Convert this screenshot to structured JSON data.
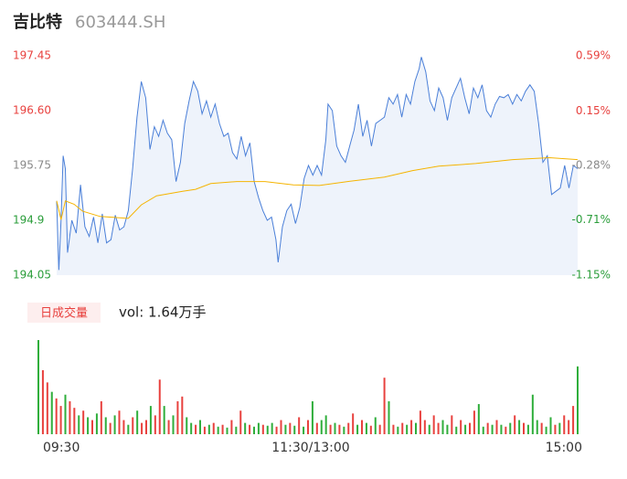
{
  "chart_data": [
    {
      "type": "line",
      "title": "吉比特",
      "subtitle": "603444.SH",
      "xlim": [
        0,
        240
      ],
      "xticks": [
        {
          "value": 0,
          "label": "09:30"
        },
        {
          "value": 120,
          "label": "11:30/13:00"
        },
        {
          "value": 240,
          "label": "15:00"
        }
      ],
      "ylim": [
        194.05,
        197.45
      ],
      "yticks": [
        194.05,
        194.9,
        {
          "value": 195.75,
          "label": "195.75"
        },
        {
          "value": 196.6,
          "label": "196.60"
        },
        197.45
      ],
      "ytick_colors": [
        "#2a9d3a",
        "#2a9d3a",
        "#888888",
        "#e8413e",
        "#e8413e"
      ],
      "y2lim": [
        -1.15,
        0.59
      ],
      "y2ticks": [
        {
          "value": -1.15,
          "label": "-1.15%"
        },
        {
          "value": -0.71,
          "label": "-0.71%"
        },
        {
          "value": -0.28,
          "label": "-0.28%"
        },
        {
          "value": 0.15,
          "label": "0.15%"
        },
        {
          "value": 0.59,
          "label": "0.59%"
        }
      ],
      "y2tick_colors": [
        "#2a9d3a",
        "#2a9d3a",
        "#888888",
        "#e8413e",
        "#e8413e"
      ],
      "series": [
        {
          "color": "#4a7fd8",
          "area": "#eef3fb",
          "x": [
            0,
            1,
            2,
            3,
            4,
            5,
            7,
            9,
            11,
            13,
            15,
            17,
            19,
            21,
            23,
            25,
            27,
            29,
            31,
            33,
            35,
            37,
            39,
            41,
            43,
            45,
            47,
            49,
            51,
            53,
            55,
            57,
            59,
            61,
            63,
            65,
            67,
            69,
            71,
            73,
            75,
            77,
            79,
            81,
            83,
            85,
            87,
            89,
            91,
            93,
            95,
            97,
            99,
            101,
            102,
            104,
            106,
            108,
            110,
            112,
            114,
            116,
            118,
            120,
            122,
            124,
            125,
            127,
            129,
            131,
            133,
            135,
            137,
            139,
            141,
            143,
            145,
            147,
            149,
            151,
            153,
            155,
            157,
            159,
            161,
            163,
            165,
            167,
            168,
            170,
            172,
            174,
            176,
            178,
            180,
            182,
            184,
            186,
            188,
            190,
            192,
            194,
            196,
            198,
            200,
            202,
            204,
            206,
            208,
            210,
            212,
            214,
            216,
            218,
            220,
            222,
            224,
            226,
            228,
            230,
            232,
            234,
            236,
            238,
            240
          ],
          "values": [
            195.2,
            194.13,
            194.91,
            195.9,
            195.7,
            194.4,
            194.9,
            194.7,
            195.45,
            194.8,
            194.65,
            194.95,
            194.55,
            195.0,
            194.55,
            194.6,
            194.98,
            194.75,
            194.8,
            195.05,
            195.7,
            196.5,
            197.05,
            196.8,
            196.0,
            196.35,
            196.2,
            196.45,
            196.25,
            196.15,
            195.5,
            195.8,
            196.4,
            196.75,
            197.05,
            196.9,
            196.55,
            196.75,
            196.5,
            196.7,
            196.4,
            196.2,
            196.25,
            195.95,
            195.85,
            196.2,
            195.9,
            196.1,
            195.5,
            195.25,
            195.05,
            194.9,
            194.95,
            194.6,
            194.25,
            194.8,
            195.05,
            195.15,
            194.85,
            195.1,
            195.55,
            195.75,
            195.6,
            195.75,
            195.6,
            196.15,
            196.7,
            196.6,
            196.05,
            195.9,
            195.8,
            196.05,
            196.3,
            196.7,
            196.2,
            196.45,
            196.05,
            196.4,
            196.45,
            196.5,
            196.8,
            196.7,
            196.85,
            196.5,
            196.85,
            196.7,
            197.05,
            197.25,
            197.43,
            197.2,
            196.75,
            196.6,
            196.95,
            196.8,
            196.45,
            196.8,
            196.95,
            197.1,
            196.8,
            196.55,
            196.95,
            196.8,
            197.0,
            196.6,
            196.5,
            196.7,
            196.82,
            196.8,
            196.85,
            196.7,
            196.85,
            196.75,
            196.9,
            197.0,
            196.9,
            196.4,
            195.8,
            195.9,
            195.3,
            195.35,
            195.4,
            195.75,
            195.4,
            195.75,
            195.7
          ]
        },
        {
          "color": "#f5b400",
          "x": [
            0,
            2,
            4,
            8,
            12,
            20,
            33,
            39,
            46,
            58,
            64,
            71,
            83,
            96,
            109,
            121,
            134,
            151,
            164,
            176,
            193,
            210,
            227,
            240
          ],
          "values": [
            195.2,
            194.91,
            195.2,
            195.15,
            195.04,
            194.96,
            194.93,
            195.14,
            195.28,
            195.35,
            195.38,
            195.47,
            195.5,
            195.5,
            195.45,
            195.44,
            195.5,
            195.57,
            195.67,
            195.74,
            195.78,
            195.84,
            195.87,
            195.84
          ]
        }
      ]
    },
    {
      "type": "bar",
      "legend": "日成交量",
      "label": "vol: 1.64万手",
      "ylim": [
        0,
        100
      ],
      "values": [
        100,
        68,
        55,
        45,
        38,
        30,
        42,
        35,
        28,
        20,
        25,
        18,
        15,
        22,
        35,
        18,
        12,
        20,
        25,
        15,
        10,
        18,
        25,
        12,
        15,
        30,
        20,
        58,
        30,
        15,
        20,
        35,
        40,
        18,
        12,
        10,
        15,
        8,
        10,
        12,
        8,
        10,
        7,
        15,
        8,
        25,
        12,
        10,
        8,
        12,
        10,
        9,
        12,
        8,
        15,
        10,
        12,
        9,
        18,
        8,
        15,
        35,
        12,
        15,
        20,
        10,
        12,
        10,
        8,
        12,
        22,
        10,
        15,
        12,
        9,
        18,
        10,
        60,
        35,
        10,
        8,
        12,
        10,
        15,
        12,
        25,
        15,
        10,
        20,
        12,
        15,
        10,
        20,
        8,
        15,
        10,
        12,
        25,
        32,
        8,
        12,
        10,
        15,
        10,
        8,
        12,
        20,
        15,
        12,
        10,
        42,
        15,
        12,
        8,
        18,
        10,
        12,
        20,
        15,
        30,
        72
      ],
      "colors": [
        "#2fae3b",
        "#e8413e",
        "#e8413e",
        "#2fae3b",
        "#e8413e",
        "#e8413e",
        "#2fae3b",
        "#e8413e",
        "#e8413e",
        "#2fae3b",
        "#e8413e",
        "#2fae3b",
        "#e8413e",
        "#2fae3b",
        "#e8413e",
        "#2fae3b",
        "#e8413e",
        "#2fae3b",
        "#e8413e",
        "#e8413e",
        "#2fae3b",
        "#e8413e",
        "#2fae3b",
        "#e8413e",
        "#e8413e",
        "#2fae3b",
        "#e8413e",
        "#e8413e",
        "#2fae3b",
        "#e8413e",
        "#2fae3b",
        "#e8413e",
        "#e8413e",
        "#2fae3b",
        "#2fae3b",
        "#e8413e",
        "#2fae3b",
        "#e8413e",
        "#2fae3b",
        "#e8413e",
        "#2fae3b",
        "#e8413e",
        "#2fae3b",
        "#e8413e",
        "#2fae3b",
        "#e8413e",
        "#2fae3b",
        "#e8413e",
        "#2fae3b",
        "#2fae3b",
        "#e8413e",
        "#2fae3b",
        "#2fae3b",
        "#e8413e",
        "#e8413e",
        "#2fae3b",
        "#e8413e",
        "#2fae3b",
        "#e8413e",
        "#2fae3b",
        "#e8413e",
        "#2fae3b",
        "#e8413e",
        "#2fae3b",
        "#2fae3b",
        "#e8413e",
        "#2fae3b",
        "#e8413e",
        "#2fae3b",
        "#e8413e",
        "#e8413e",
        "#2fae3b",
        "#e8413e",
        "#2fae3b",
        "#e8413e",
        "#2fae3b",
        "#e8413e",
        "#e8413e",
        "#2fae3b",
        "#e8413e",
        "#2fae3b",
        "#e8413e",
        "#2fae3b",
        "#e8413e",
        "#2fae3b",
        "#e8413e",
        "#e8413e",
        "#2fae3b",
        "#e8413e",
        "#e8413e",
        "#2fae3b",
        "#2fae3b",
        "#e8413e",
        "#2fae3b",
        "#e8413e",
        "#2fae3b",
        "#e8413e",
        "#e8413e",
        "#2fae3b",
        "#2fae3b",
        "#e8413e",
        "#2fae3b",
        "#e8413e",
        "#2fae3b",
        "#e8413e",
        "#2fae3b",
        "#e8413e",
        "#2fae3b",
        "#e8413e",
        "#2fae3b",
        "#2fae3b",
        "#2fae3b",
        "#e8413e",
        "#2fae3b",
        "#2fae3b",
        "#e8413e",
        "#2fae3b",
        "#e8413e",
        "#e8413e",
        "#e8413e",
        "#2fae3b"
      ]
    }
  ]
}
